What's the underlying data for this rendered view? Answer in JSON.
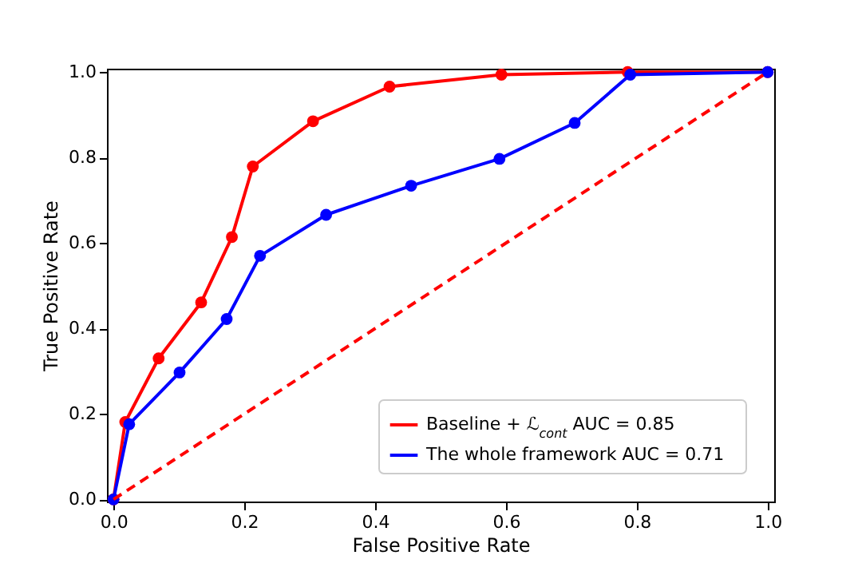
{
  "chart_data": {
    "type": "line",
    "xlabel": "False Positive Rate",
    "ylabel": "True Positive Rate",
    "xlim": [
      -0.01,
      1.01
    ],
    "ylim": [
      -0.005,
      1.008
    ],
    "xticks": [
      {
        "value": 0,
        "label": "0.0"
      },
      {
        "value": 0.2,
        "label": "0.2"
      },
      {
        "value": 0.4,
        "label": "0.4"
      },
      {
        "value": 0.6,
        "label": "0.6"
      },
      {
        "value": 0.8,
        "label": "0.8"
      },
      {
        "value": 1,
        "label": "1.0"
      }
    ],
    "yticks": [
      {
        "value": 0,
        "label": "0.0"
      },
      {
        "value": 0.2,
        "label": "0.2"
      },
      {
        "value": 0.4,
        "label": "0.4"
      },
      {
        "value": 0.6,
        "label": "0.6"
      },
      {
        "value": 0.8,
        "label": "0.8"
      },
      {
        "value": 1,
        "label": "1.0"
      }
    ],
    "grid": false,
    "legend": "bottom right",
    "marker": "circle",
    "series": [
      {
        "name": "Baseline + ℒ$_{cont}$   AUC = 0.85",
        "color": "#ff0000",
        "x": [
          0,
          0.018,
          0.069,
          0.134,
          0.181,
          0.213,
          0.305,
          0.422,
          0.593,
          0.786,
          1.0
        ],
        "values": [
          0,
          0.181,
          0.33,
          0.461,
          0.614,
          0.779,
          0.885,
          0.966,
          0.994,
          1.0,
          1.0
        ]
      },
      {
        "name": "The whole framework   AUC = 0.71",
        "color": "#0000ff",
        "x": [
          0,
          0.024,
          0.101,
          0.173,
          0.224,
          0.325,
          0.455,
          0.59,
          0.705,
          0.79,
          1.0
        ],
        "values": [
          0,
          0.176,
          0.297,
          0.422,
          0.57,
          0.666,
          0.734,
          0.797,
          0.881,
          0.994,
          1.0
        ]
      },
      {
        "color": "#ff0000",
        "x": [
          0,
          1
        ],
        "values": [
          0,
          1
        ],
        "marker": "none",
        "line_style": "dashed"
      }
    ]
  }
}
